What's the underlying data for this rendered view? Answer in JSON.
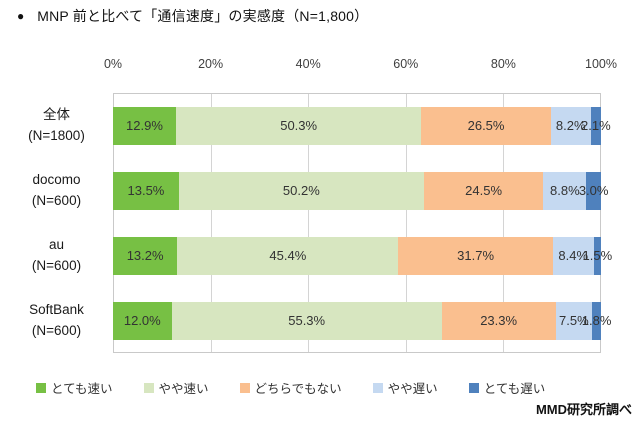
{
  "title": {
    "bullet": "●",
    "text": "MNP 前と比べて「通信速度」の実感度（N=1,800）"
  },
  "chart_data": {
    "type": "bar",
    "stacked": true,
    "orientation": "horizontal",
    "title": "MNP 前と比べて「通信速度」の実感度（N=1,800）",
    "xlim": [
      0,
      100
    ],
    "x_ticks": [
      "0%",
      "20%",
      "40%",
      "60%",
      "80%",
      "100%"
    ],
    "grid": true,
    "legend_position": "bottom",
    "categories": [
      {
        "name": "全体",
        "n": "(N=1800)"
      },
      {
        "name": "docomo",
        "n": "(N=600)"
      },
      {
        "name": "au",
        "n": "(N=600)"
      },
      {
        "name": "SoftBank",
        "n": "(N=600)"
      }
    ],
    "series": [
      {
        "key": "very-fast",
        "name": "とても速い",
        "color": "#77C044",
        "values": [
          12.9,
          13.5,
          13.2,
          12.0
        ]
      },
      {
        "key": "somewhat-fast",
        "name": "やや速い",
        "color": "#D7E6C0",
        "values": [
          50.3,
          50.2,
          45.4,
          55.3
        ]
      },
      {
        "key": "neutral",
        "name": "どちらでもない",
        "color": "#FABF8F",
        "values": [
          26.5,
          24.5,
          31.7,
          23.3
        ]
      },
      {
        "key": "somewhat-slow",
        "name": "やや遅い",
        "color": "#C5D9F1",
        "values": [
          8.2,
          8.8,
          8.4,
          7.5
        ]
      },
      {
        "key": "very-slow",
        "name": "とても遅い",
        "color": "#4F81BD",
        "values": [
          2.1,
          3.0,
          1.5,
          1.8
        ]
      }
    ]
  },
  "footer": {
    "credit": "MMD研究所調べ"
  }
}
